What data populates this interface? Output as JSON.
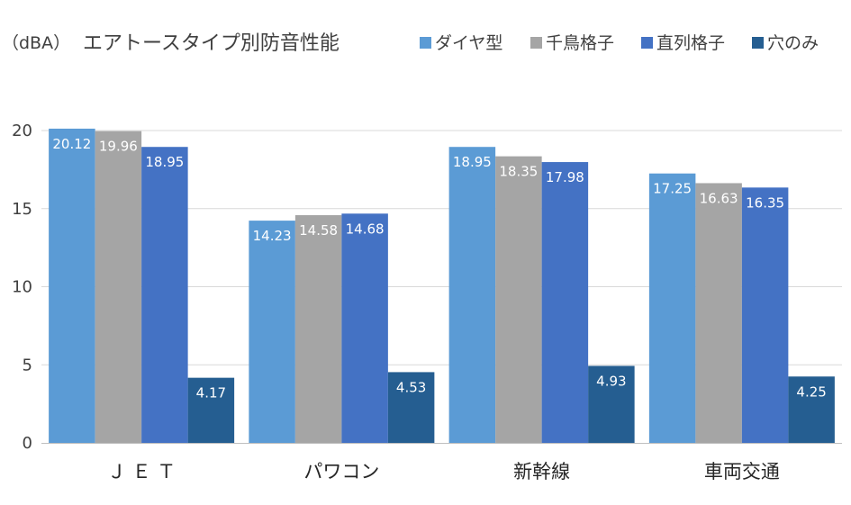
{
  "chart_data": {
    "type": "bar",
    "unit_label": "（dBA）",
    "title": "エアトースタイプ別防音性能",
    "categories": [
      "Ｊ Ｅ Ｔ",
      "パワコン",
      "新幹線",
      "車両交通"
    ],
    "series": [
      {
        "name": "ダイヤ型",
        "color": "#5b9bd5",
        "values": [
          20.12,
          14.23,
          18.95,
          17.25
        ]
      },
      {
        "name": "千鳥格子",
        "color": "#a5a5a5",
        "values": [
          19.96,
          14.58,
          18.35,
          16.63
        ]
      },
      {
        "name": "直列格子",
        "color": "#4472c4",
        "values": [
          18.95,
          14.68,
          17.98,
          16.35
        ]
      },
      {
        "name": "穴のみ",
        "color": "#255e91",
        "values": [
          4.17,
          4.53,
          4.93,
          4.25
        ]
      }
    ],
    "ylim": [
      0,
      20
    ],
    "yticks": [
      0,
      5,
      10,
      15,
      20
    ],
    "grid": true,
    "legend_position": "top-right"
  }
}
